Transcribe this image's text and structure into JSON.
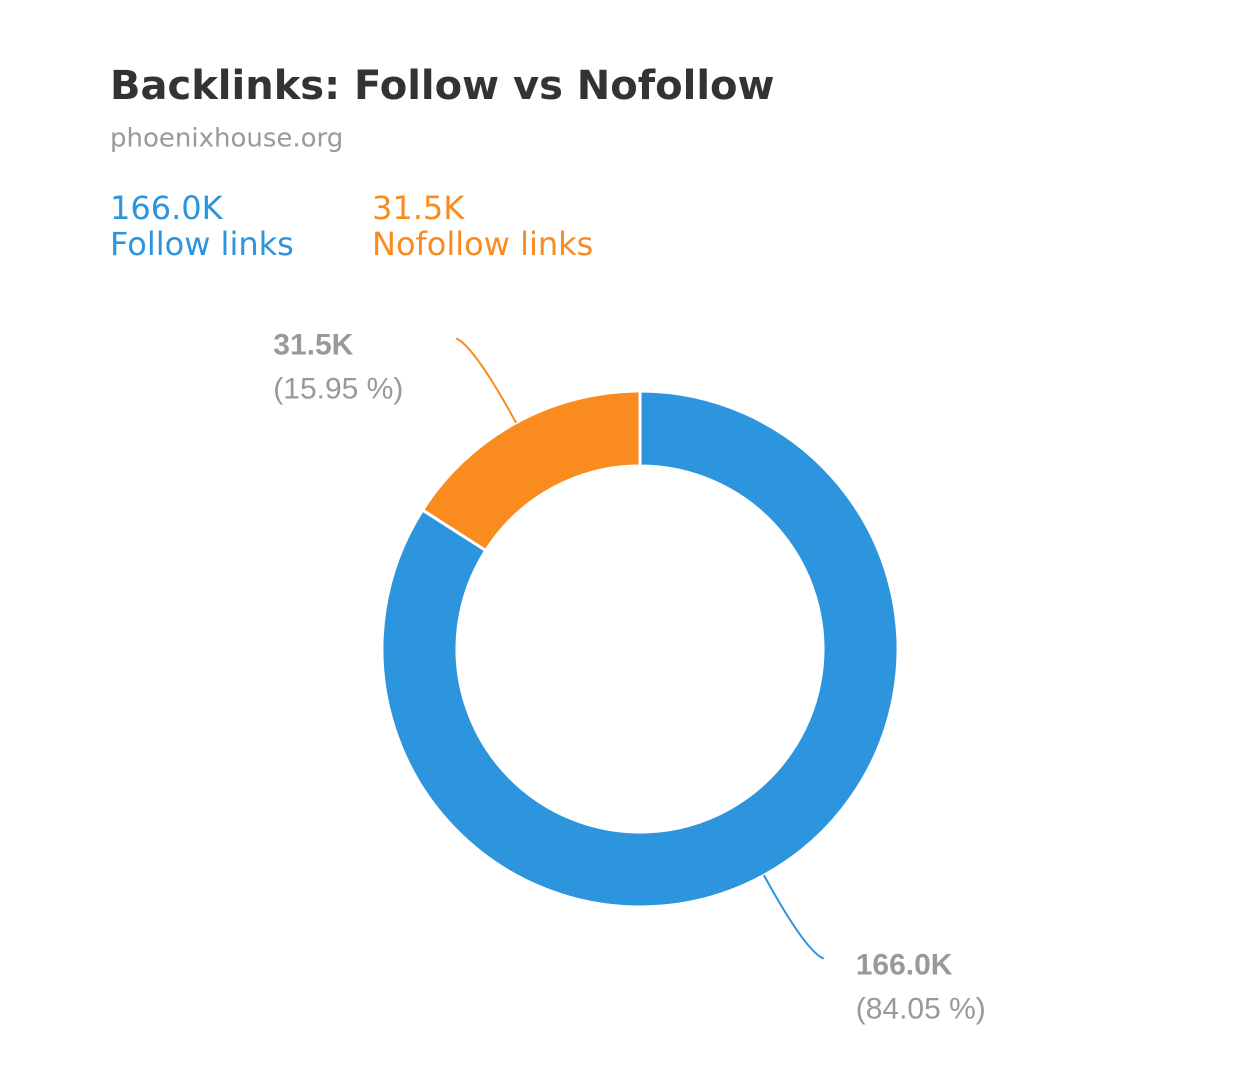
{
  "chart_data": {
    "type": "donut",
    "title": "Backlinks: Follow vs Nofollow",
    "subtitle": "phoenixhouse.org",
    "categories": [
      "Follow links",
      "Nofollow links"
    ],
    "values": [
      166000,
      31500
    ],
    "value_labels": [
      "166.0K",
      "31.5K"
    ],
    "percents": [
      84.05,
      15.95
    ],
    "percent_labels": [
      "(84.05 %)",
      "(15.95 %)"
    ],
    "colors": [
      "#2d94de",
      "#f98b1f"
    ]
  }
}
